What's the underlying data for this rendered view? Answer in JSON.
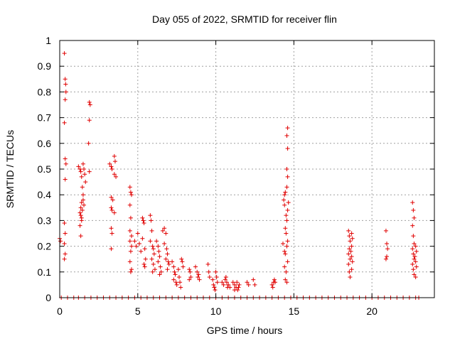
{
  "chart_data": {
    "type": "scatter",
    "title": "Day 055 of 2022, SRMTID for receiver flin",
    "xlabel": "GPS time / hours",
    "ylabel": "SRMTID / TECUs",
    "xlim": [
      0,
      24
    ],
    "ylim": [
      0,
      1
    ],
    "xticks": [
      0,
      5,
      10,
      15,
      20
    ],
    "xtick_labels": [
      "0",
      "5",
      "10",
      "15",
      "20"
    ],
    "yticks": [
      0,
      0.1,
      0.2,
      0.3,
      0.4,
      0.5,
      0.6,
      0.7,
      0.8,
      0.9,
      1
    ],
    "ytick_labels": [
      "0",
      "0.1",
      "0.2",
      "0.3",
      "0.4",
      "0.5",
      "0.6",
      "0.7",
      "0.8",
      "0.9",
      "1"
    ],
    "grid": true,
    "marker": "+",
    "marker_color": "#e00000",
    "series": [
      {
        "name": "SRMTID",
        "points": [
          [
            0.0,
            0.23
          ],
          [
            0.05,
            0.22
          ],
          [
            0.3,
            0.95
          ],
          [
            0.35,
            0.85
          ],
          [
            0.38,
            0.83
          ],
          [
            0.4,
            0.8
          ],
          [
            0.35,
            0.77
          ],
          [
            0.3,
            0.68
          ],
          [
            0.35,
            0.54
          ],
          [
            0.4,
            0.52
          ],
          [
            0.35,
            0.46
          ],
          [
            0.3,
            0.29
          ],
          [
            0.35,
            0.25
          ],
          [
            0.3,
            0.21
          ],
          [
            0.35,
            0.17
          ],
          [
            0.3,
            0.15
          ],
          [
            1.2,
            0.51
          ],
          [
            1.3,
            0.5
          ],
          [
            1.35,
            0.49
          ],
          [
            1.4,
            0.47
          ],
          [
            1.45,
            0.43
          ],
          [
            1.5,
            0.4
          ],
          [
            1.4,
            0.37
          ],
          [
            1.35,
            0.35
          ],
          [
            1.3,
            0.33
          ],
          [
            1.35,
            0.32
          ],
          [
            1.4,
            0.3
          ],
          [
            1.3,
            0.28
          ],
          [
            1.35,
            0.24
          ],
          [
            1.5,
            0.52
          ],
          [
            1.55,
            0.5
          ],
          [
            1.6,
            0.48
          ],
          [
            1.65,
            0.45
          ],
          [
            1.5,
            0.38
          ],
          [
            1.55,
            0.36
          ],
          [
            1.45,
            0.34
          ],
          [
            1.4,
            0.31
          ],
          [
            1.9,
            0.76
          ],
          [
            1.95,
            0.75
          ],
          [
            1.9,
            0.69
          ],
          [
            1.85,
            0.6
          ],
          [
            1.9,
            0.49
          ],
          [
            3.2,
            0.52
          ],
          [
            3.3,
            0.51
          ],
          [
            3.35,
            0.5
          ],
          [
            3.5,
            0.55
          ],
          [
            3.55,
            0.53
          ],
          [
            3.5,
            0.48
          ],
          [
            3.6,
            0.47
          ],
          [
            3.3,
            0.39
          ],
          [
            3.4,
            0.38
          ],
          [
            3.3,
            0.35
          ],
          [
            3.35,
            0.34
          ],
          [
            3.5,
            0.33
          ],
          [
            3.3,
            0.27
          ],
          [
            3.35,
            0.25
          ],
          [
            3.3,
            0.19
          ],
          [
            4.5,
            0.43
          ],
          [
            4.55,
            0.41
          ],
          [
            4.6,
            0.4
          ],
          [
            4.5,
            0.36
          ],
          [
            4.55,
            0.31
          ],
          [
            4.5,
            0.26
          ],
          [
            4.6,
            0.24
          ],
          [
            4.5,
            0.22
          ],
          [
            4.6,
            0.2
          ],
          [
            4.55,
            0.18
          ],
          [
            4.5,
            0.14
          ],
          [
            4.6,
            0.11
          ],
          [
            4.55,
            0.1
          ],
          [
            4.8,
            0.22
          ],
          [
            4.9,
            0.2
          ],
          [
            5.0,
            0.25
          ],
          [
            5.1,
            0.21
          ],
          [
            5.2,
            0.18
          ],
          [
            5.3,
            0.31
          ],
          [
            5.35,
            0.3
          ],
          [
            5.4,
            0.29
          ],
          [
            5.3,
            0.23
          ],
          [
            5.45,
            0.19
          ],
          [
            5.5,
            0.15
          ],
          [
            5.4,
            0.13
          ],
          [
            5.45,
            0.12
          ],
          [
            5.8,
            0.32
          ],
          [
            5.85,
            0.3
          ],
          [
            5.9,
            0.26
          ],
          [
            5.8,
            0.22
          ],
          [
            5.95,
            0.2
          ],
          [
            6.0,
            0.19
          ],
          [
            6.05,
            0.17
          ],
          [
            5.9,
            0.15
          ],
          [
            6.0,
            0.13
          ],
          [
            6.1,
            0.11
          ],
          [
            5.95,
            0.1
          ],
          [
            6.2,
            0.22
          ],
          [
            6.3,
            0.2
          ],
          [
            6.35,
            0.18
          ],
          [
            6.4,
            0.16
          ],
          [
            6.3,
            0.14
          ],
          [
            6.45,
            0.12
          ],
          [
            6.5,
            0.1
          ],
          [
            6.4,
            0.09
          ],
          [
            6.6,
            0.26
          ],
          [
            6.7,
            0.27
          ],
          [
            6.8,
            0.25
          ],
          [
            6.7,
            0.21
          ],
          [
            6.85,
            0.19
          ],
          [
            6.9,
            0.17
          ],
          [
            6.8,
            0.15
          ],
          [
            6.95,
            0.14
          ],
          [
            7.0,
            0.13
          ],
          [
            6.9,
            0.11
          ],
          [
            7.2,
            0.14
          ],
          [
            7.3,
            0.12
          ],
          [
            7.35,
            0.1
          ],
          [
            7.4,
            0.09
          ],
          [
            7.3,
            0.07
          ],
          [
            7.45,
            0.06
          ],
          [
            7.5,
            0.05
          ],
          [
            7.6,
            0.11
          ],
          [
            7.65,
            0.08
          ],
          [
            7.7,
            0.06
          ],
          [
            7.8,
            0.15
          ],
          [
            7.85,
            0.14
          ],
          [
            7.9,
            0.12
          ],
          [
            7.75,
            0.04
          ],
          [
            8.3,
            0.11
          ],
          [
            8.35,
            0.1
          ],
          [
            8.4,
            0.08
          ],
          [
            8.3,
            0.07
          ],
          [
            8.7,
            0.12
          ],
          [
            8.8,
            0.1
          ],
          [
            8.9,
            0.09
          ],
          [
            8.85,
            0.08
          ],
          [
            8.95,
            0.07
          ],
          [
            9.5,
            0.13
          ],
          [
            9.55,
            0.1
          ],
          [
            9.6,
            0.08
          ],
          [
            9.8,
            0.07
          ],
          [
            9.85,
            0.05
          ],
          [
            9.9,
            0.04
          ],
          [
            10.0,
            0.1
          ],
          [
            10.05,
            0.08
          ],
          [
            10.1,
            0.06
          ],
          [
            9.95,
            0.03
          ],
          [
            10.4,
            0.06
          ],
          [
            10.5,
            0.05
          ],
          [
            10.6,
            0.07
          ],
          [
            10.65,
            0.08
          ],
          [
            10.7,
            0.06
          ],
          [
            10.75,
            0.04
          ],
          [
            10.8,
            0.05
          ],
          [
            10.9,
            0.04
          ],
          [
            11.1,
            0.06
          ],
          [
            11.2,
            0.05
          ],
          [
            11.3,
            0.04
          ],
          [
            11.4,
            0.03
          ],
          [
            11.5,
            0.05
          ],
          [
            11.35,
            0.06
          ],
          [
            11.45,
            0.04
          ],
          [
            11.2,
            0.03
          ],
          [
            12.0,
            0.06
          ],
          [
            12.1,
            0.05
          ],
          [
            12.4,
            0.07
          ],
          [
            12.5,
            0.05
          ],
          [
            13.6,
            0.05
          ],
          [
            13.7,
            0.06
          ],
          [
            13.75,
            0.07
          ],
          [
            13.8,
            0.06
          ],
          [
            13.65,
            0.04
          ],
          [
            14.3,
            0.21
          ],
          [
            14.35,
            0.38
          ],
          [
            14.4,
            0.4
          ],
          [
            14.45,
            0.41
          ],
          [
            14.4,
            0.36
          ],
          [
            14.5,
            0.32
          ],
          [
            14.45,
            0.27
          ],
          [
            14.5,
            0.25
          ],
          [
            14.4,
            0.18
          ],
          [
            14.45,
            0.17
          ],
          [
            14.4,
            0.12
          ],
          [
            14.5,
            0.1
          ],
          [
            14.45,
            0.07
          ],
          [
            14.55,
            0.06
          ],
          [
            14.6,
            0.66
          ],
          [
            14.55,
            0.63
          ],
          [
            14.6,
            0.58
          ],
          [
            14.55,
            0.5
          ],
          [
            14.6,
            0.47
          ],
          [
            14.55,
            0.43
          ],
          [
            14.65,
            0.37
          ],
          [
            14.6,
            0.34
          ],
          [
            14.55,
            0.3
          ],
          [
            14.6,
            0.22
          ],
          [
            14.55,
            0.2
          ],
          [
            14.6,
            0.14
          ],
          [
            18.5,
            0.26
          ],
          [
            18.55,
            0.24
          ],
          [
            18.6,
            0.22
          ],
          [
            18.55,
            0.19
          ],
          [
            18.5,
            0.17
          ],
          [
            18.6,
            0.15
          ],
          [
            18.5,
            0.13
          ],
          [
            18.55,
            0.1
          ],
          [
            18.6,
            0.08
          ],
          [
            18.7,
            0.25
          ],
          [
            18.75,
            0.23
          ],
          [
            18.7,
            0.2
          ],
          [
            18.65,
            0.18
          ],
          [
            18.7,
            0.16
          ],
          [
            18.75,
            0.14
          ],
          [
            18.7,
            0.11
          ],
          [
            20.9,
            0.26
          ],
          [
            20.95,
            0.21
          ],
          [
            21.0,
            0.19
          ],
          [
            20.95,
            0.16
          ],
          [
            20.9,
            0.15
          ],
          [
            22.6,
            0.37
          ],
          [
            22.65,
            0.34
          ],
          [
            22.7,
            0.31
          ],
          [
            22.6,
            0.28
          ],
          [
            22.65,
            0.24
          ],
          [
            22.7,
            0.21
          ],
          [
            22.6,
            0.19
          ],
          [
            22.65,
            0.17
          ],
          [
            22.7,
            0.15
          ],
          [
            22.6,
            0.13
          ],
          [
            22.65,
            0.11
          ],
          [
            22.7,
            0.09
          ],
          [
            22.8,
            0.2
          ],
          [
            22.85,
            0.18
          ],
          [
            22.75,
            0.16
          ],
          [
            22.8,
            0.14
          ],
          [
            22.85,
            0.12
          ],
          [
            22.8,
            0.08
          ],
          [
            0.1,
            0
          ],
          [
            0.5,
            0
          ],
          [
            0.9,
            0
          ],
          [
            1.2,
            0
          ],
          [
            1.6,
            0
          ],
          [
            2.0,
            0
          ],
          [
            2.4,
            0
          ],
          [
            2.8,
            0
          ],
          [
            3.2,
            0
          ],
          [
            3.6,
            0
          ],
          [
            4.0,
            0
          ],
          [
            4.4,
            0
          ],
          [
            4.8,
            0
          ],
          [
            5.2,
            0
          ],
          [
            5.6,
            0
          ],
          [
            6.0,
            0
          ],
          [
            6.4,
            0
          ],
          [
            6.8,
            0
          ],
          [
            7.2,
            0
          ],
          [
            7.6,
            0
          ],
          [
            8.0,
            0
          ],
          [
            8.4,
            0
          ],
          [
            8.8,
            0
          ],
          [
            9.2,
            0
          ],
          [
            9.6,
            0
          ],
          [
            10.0,
            0
          ],
          [
            10.4,
            0
          ],
          [
            10.8,
            0
          ],
          [
            11.2,
            0
          ],
          [
            11.6,
            0
          ],
          [
            12.0,
            0
          ],
          [
            12.4,
            0
          ],
          [
            12.8,
            0
          ],
          [
            13.2,
            0
          ],
          [
            13.6,
            0
          ],
          [
            14.0,
            0
          ],
          [
            14.4,
            0
          ],
          [
            14.8,
            0
          ],
          [
            15.2,
            0
          ],
          [
            15.6,
            0
          ],
          [
            16.0,
            0
          ],
          [
            16.4,
            0
          ],
          [
            16.8,
            0
          ],
          [
            17.2,
            0
          ],
          [
            17.6,
            0
          ],
          [
            18.0,
            0
          ],
          [
            18.4,
            0
          ],
          [
            18.8,
            0
          ],
          [
            19.2,
            0
          ],
          [
            19.6,
            0
          ],
          [
            20.0,
            0
          ],
          [
            20.4,
            0
          ],
          [
            20.8,
            0
          ],
          [
            21.2,
            0
          ],
          [
            21.6,
            0
          ],
          [
            22.0,
            0
          ],
          [
            22.4,
            0
          ],
          [
            22.8,
            0
          ],
          [
            23.0,
            0
          ]
        ]
      }
    ]
  }
}
